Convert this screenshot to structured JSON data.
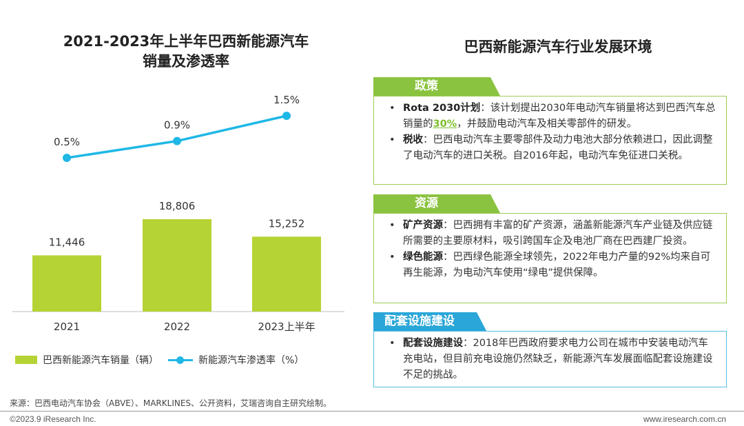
{
  "chart_data": {
    "type": "bar",
    "title_line1": "2021-2023年上半年巴西新能源汽车",
    "title_line2": "销量及渗透率",
    "categories": [
      "2021",
      "2022",
      "2023上半年"
    ],
    "series": [
      {
        "name": "巴西新能源汽车销量（辆）",
        "type": "bar",
        "values": [
          11446,
          18806,
          15252
        ],
        "labels": [
          "11,446",
          "18,806",
          "15,252"
        ],
        "color": "#b5d334"
      },
      {
        "name": "新能源汽车渗透率（%）",
        "type": "line",
        "values": [
          0.5,
          0.9,
          1.5
        ],
        "labels": [
          "0.5%",
          "0.9%",
          "1.5%"
        ],
        "color": "#1fb8e6"
      }
    ],
    "bar_ylim": [
      0,
      26000
    ],
    "line_ylim": [
      0,
      2.0
    ]
  },
  "panel": {
    "title": "巴西新能源汽车行业发展环境",
    "policy": {
      "tab": "政策",
      "b1_title": "Rota 2030计划",
      "b1_text_a": "：该计划提出2030年电动汽车销量将达到巴西汽车总销量的",
      "b1_highlight": "30%",
      "b1_text_b": "，并鼓励电动汽车及相关零部件的研发。",
      "b2_title": "税收",
      "b2_text": "：巴西电动汽车主要零部件及动力电池大部分依赖进口，因此调整了电动汽车的进口关税。自2016年起，电动汽车免征进口关税。"
    },
    "resources": {
      "tab": "资源",
      "b1_title": "矿产资源",
      "b1_text": "：巴西拥有丰富的矿产资源，涵盖新能源汽车产业链及供应链所需要的主要原材料，吸引跨国车企及电池厂商在巴西建厂投资。",
      "b2_title": "绿色能源",
      "b2_text": "：巴西绿色能源全球领先，2022年电力产量的92%均来自可再生能源，为电动汽车使用“绿电”提供保障。"
    },
    "infra": {
      "tab": "配套设施建设",
      "b1_title": "配套设施建设",
      "b1_text": "：2018年巴西政府要求电力公司在城市中安装电动汽车充电站，但目前充电设施仍然缺乏，新能源汽车发展面临配套设施建设不足的挑战。"
    }
  },
  "footer": {
    "source": "来源：巴西电动汽车协会（ABVE）、MARKLINES、公开资料，艾瑞咨询自主研究绘制。",
    "copyright": "©2023.9 iResearch Inc.",
    "website": "www.iresearch.com.cn"
  }
}
